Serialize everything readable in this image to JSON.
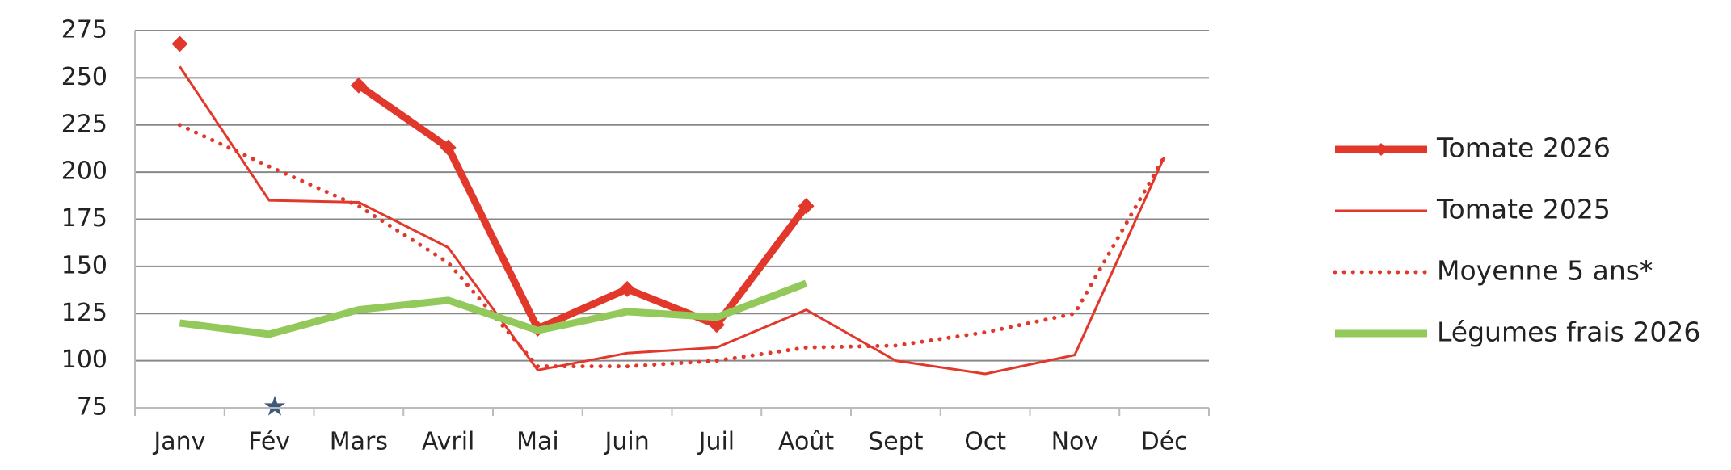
{
  "chart_data": {
    "type": "line",
    "categories": [
      "Janv",
      "Fév",
      "Mars",
      "Avril",
      "Mai",
      "Juin",
      "Juil",
      "Août",
      "Sept",
      "Oct",
      "Nov",
      "Déc"
    ],
    "series": [
      {
        "name": "Tomate 2026",
        "color": "#e1382b",
        "width": 9,
        "marker": "diamond",
        "values": [
          268,
          null,
          246,
          213,
          117,
          138,
          119,
          182,
          null,
          null,
          null,
          null
        ]
      },
      {
        "name": "Tomate 2025",
        "color": "#e1382b",
        "width": 3,
        "values": [
          256,
          185,
          184,
          160,
          95,
          104,
          107,
          127,
          100,
          93,
          103,
          208
        ]
      },
      {
        "name": "Moyenne 5 ans*",
        "color": "#e1382b",
        "width": 5,
        "dash": "dotted",
        "values": [
          225,
          203,
          182,
          152,
          97,
          97,
          100,
          107,
          108,
          115,
          125,
          208
        ]
      },
      {
        "name": "Légumes frais 2026",
        "color": "#92c95a",
        "width": 9,
        "values": [
          120,
          114,
          127,
          132,
          116,
          126,
          123,
          141,
          null,
          null,
          null,
          null
        ]
      }
    ],
    "ylim": [
      75,
      275
    ],
    "yticks": [
      75,
      100,
      125,
      150,
      175,
      200,
      225,
      250,
      275
    ],
    "grid": true,
    "legend": "right"
  }
}
